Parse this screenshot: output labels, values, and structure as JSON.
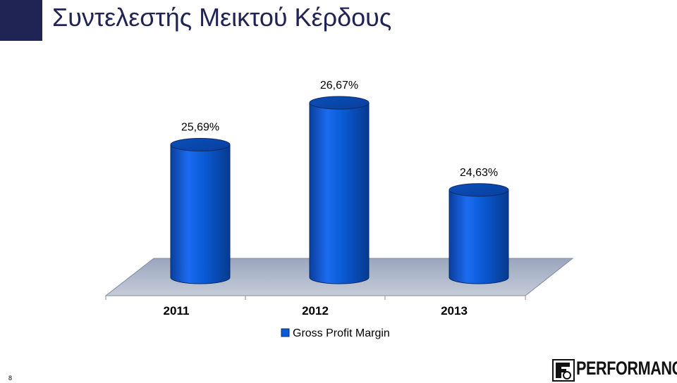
{
  "slide": {
    "title": "Συντελεστής Μεικτού Κέρδους",
    "number": "8",
    "logo_text": "PERFORMANCE",
    "accent_color": "#1f2454"
  },
  "chart_data": {
    "type": "bar",
    "style": "3d-cylinder",
    "categories": [
      "2011",
      "2012",
      "2013"
    ],
    "series": [
      {
        "name": "Gross Profit Margin",
        "values": [
          25.69,
          26.67,
          24.63
        ],
        "labels": [
          "25,69%",
          "26,67%",
          "24,63%"
        ],
        "color": "#0a5bd6"
      }
    ],
    "legend": "bottom",
    "grid": false,
    "floor_color": "#aab4c6"
  }
}
